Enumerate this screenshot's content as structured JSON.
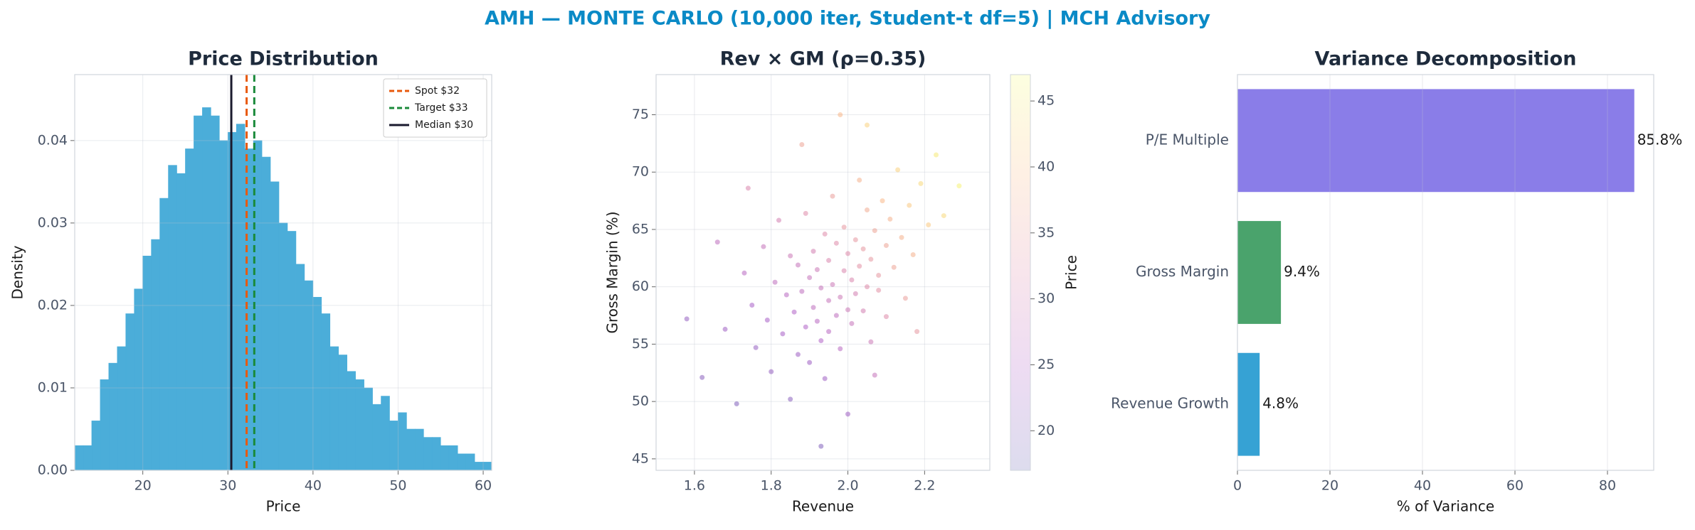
{
  "title": "AMH — MONTE CARLO (10,000 iter, Student-t df=5) | MCH Advisory",
  "chart_data": [
    {
      "type": "histogram",
      "title": "Price Distribution",
      "x_label": "Price",
      "y_label": "Density",
      "color": "#4badd9",
      "bins": [
        12,
        13,
        14,
        15,
        16,
        17,
        18,
        19,
        20,
        21,
        22,
        23,
        24,
        25,
        26,
        27,
        28,
        29,
        30,
        31,
        32,
        33,
        34,
        35,
        36,
        37,
        38,
        39,
        40,
        41,
        42,
        43,
        44,
        45,
        46,
        47,
        48,
        49,
        50,
        51,
        52,
        53,
        54,
        55,
        56,
        57,
        58,
        59,
        60,
        61
      ],
      "values": [
        0.003,
        0.003,
        0.006,
        0.011,
        0.013,
        0.015,
        0.019,
        0.022,
        0.026,
        0.028,
        0.033,
        0.037,
        0.036,
        0.039,
        0.043,
        0.044,
        0.043,
        0.04,
        0.041,
        0.042,
        0.039,
        0.04,
        0.038,
        0.035,
        0.03,
        0.029,
        0.025,
        0.023,
        0.021,
        0.019,
        0.015,
        0.014,
        0.012,
        0.011,
        0.01,
        0.008,
        0.009,
        0.006,
        0.007,
        0.005,
        0.005,
        0.004,
        0.004,
        0.003,
        0.003,
        0.002,
        0.002,
        0.001,
        0.001
      ],
      "xlim": [
        12,
        61
      ],
      "ylim": [
        0,
        0.048
      ],
      "xticks": [
        20,
        30,
        40,
        50,
        60
      ],
      "yticks": [
        {
          "value": 0,
          "label": "0.00"
        },
        {
          "value": 0.01,
          "label": "0.01"
        },
        {
          "value": 0.02,
          "label": "0.02"
        },
        {
          "value": 0.03,
          "label": "0.03"
        },
        {
          "value": 0.04,
          "label": "0.04"
        }
      ],
      "grid": true,
      "legend": "upper right",
      "vlines": [
        {
          "name": "Spot $32",
          "value": 32.2,
          "color": "#e8590c",
          "style": "dashed"
        },
        {
          "name": "Target $33",
          "value": 33.1,
          "color": "#1a8a3a",
          "style": "dashed"
        },
        {
          "name": "Median $30",
          "value": 30.4,
          "color": "#1a1a2e",
          "style": "solid"
        }
      ]
    },
    {
      "type": "scatter",
      "title": "Rev × GM (ρ=0.35)",
      "x_label": "Revenue",
      "y_label": "Gross Margin (%)",
      "colormap": "plasma",
      "colorbar_label": "Price",
      "clim": [
        17,
        47
      ],
      "cticks": [
        20,
        25,
        30,
        35,
        40,
        45
      ],
      "xlim": [
        1.5,
        2.37
      ],
      "ylim": [
        44,
        78.5
      ],
      "xticks": [
        1.6,
        1.8,
        {
          "value": 2,
          "label": "2.0"
        },
        2.2
      ],
      "yticks": [
        45,
        50,
        55,
        60,
        65,
        70,
        75
      ],
      "grid": true,
      "x": [
        1.62,
        1.68,
        1.71,
        1.73,
        1.75,
        1.76,
        1.78,
        1.79,
        1.8,
        1.81,
        1.82,
        1.83,
        1.84,
        1.85,
        1.85,
        1.86,
        1.87,
        1.87,
        1.88,
        1.89,
        1.89,
        1.9,
        1.9,
        1.91,
        1.91,
        1.92,
        1.92,
        1.93,
        1.93,
        1.94,
        1.94,
        1.95,
        1.95,
        1.95,
        1.96,
        1.96,
        1.97,
        1.97,
        1.98,
        1.98,
        1.99,
        1.99,
        2.0,
        2.0,
        2.0,
        2.01,
        2.01,
        2.02,
        2.02,
        2.03,
        2.03,
        2.04,
        2.04,
        2.05,
        2.05,
        2.06,
        2.06,
        2.07,
        2.08,
        2.08,
        2.09,
        2.1,
        2.1,
        2.11,
        2.12,
        2.13,
        2.14,
        2.15,
        2.16,
        2.17,
        2.19,
        2.21,
        2.23,
        2.25,
        2.29,
        1.58,
        1.66,
        1.74,
        1.88,
        1.98,
        2.07,
        2.18,
        1.93,
        2.05
      ],
      "y": [
        52.1,
        56.3,
        49.8,
        61.2,
        58.4,
        54.7,
        63.5,
        57.1,
        52.6,
        60.4,
        65.8,
        55.9,
        59.3,
        62.7,
        50.2,
        57.8,
        61.9,
        54.1,
        59.6,
        66.4,
        56.5,
        60.8,
        53.4,
        58.2,
        63.1,
        57.0,
        61.5,
        55.3,
        59.9,
        64.6,
        52.0,
        58.8,
        62.3,
        56.1,
        60.2,
        67.9,
        57.5,
        63.8,
        59.1,
        54.6,
        61.4,
        65.2,
        58.0,
        62.9,
        48.9,
        60.6,
        56.8,
        64.1,
        59.4,
        61.8,
        69.3,
        57.9,
        63.3,
        60.0,
        66.7,
        62.4,
        55.2,
        64.9,
        59.7,
        61.0,
        67.5,
        63.6,
        57.4,
        65.9,
        61.7,
        70.2,
        64.3,
        59.0,
        67.1,
        62.8,
        69.0,
        65.4,
        71.5,
        66.2,
        68.8,
        57.2,
        63.9,
        68.6,
        72.4,
        75.0,
        52.3,
        56.1,
        46.1,
        74.1
      ],
      "c": [
        21,
        23,
        20,
        26,
        24,
        22,
        28,
        24,
        22,
        27,
        30,
        24,
        26,
        29,
        21,
        25,
        28,
        23,
        27,
        32,
        25,
        28,
        23,
        27,
        30,
        26,
        29,
        25,
        28,
        32,
        23,
        28,
        31,
        26,
        29,
        35,
        27,
        32,
        29,
        26,
        31,
        34,
        29,
        32,
        23,
        31,
        28,
        34,
        30,
        33,
        38,
        30,
        34,
        32,
        37,
        34,
        29,
        36,
        33,
        34,
        39,
        36,
        32,
        38,
        36,
        42,
        38,
        35,
        41,
        38,
        43,
        41,
        45,
        43,
        46,
        22,
        27,
        31,
        36,
        39,
        28,
        34,
        20,
        42
      ]
    },
    {
      "type": "hbar",
      "title": "Variance Decomposition",
      "x_label": "% of Variance",
      "categories": [
        "P/E Multiple",
        "Gross Margin",
        "Revenue Growth"
      ],
      "values": [
        85.8,
        9.4,
        4.8
      ],
      "value_labels": [
        "85.8%",
        "9.4%",
        "4.8%"
      ],
      "colors": [
        "#8a7de8",
        "#4aa36c",
        "#36a2d4"
      ],
      "xlim": [
        0,
        90
      ],
      "xticks": [
        0,
        20,
        40,
        60,
        80
      ],
      "grid": true
    }
  ]
}
